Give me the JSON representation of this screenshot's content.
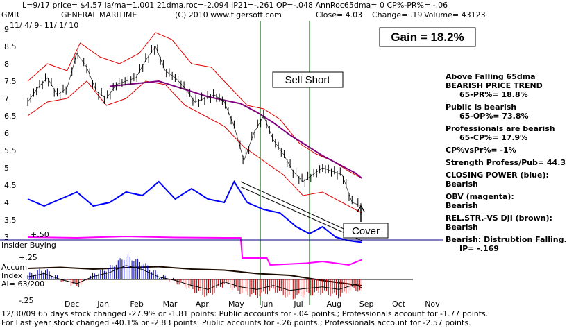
{
  "header": {
    "line1": "L=9/17  price= $4.57  la/ma=1.001 21dma.roc=-2.094 IP21=-.261 OP=-.048 AnnRoc65dma= 0 CP%-PR%= -.06",
    "ticker": "GMR",
    "company": "GENERAL MARITIME",
    "copyright": "(C) 2010  www.tigersoft.com",
    "close": "Close=   4.03",
    "change": "Change= .19",
    "volume": "Volume= 43123",
    "date_range": "11/ 4/ 9- 11/ 1/ 10"
  },
  "gain_label": "Gain = 18.2%",
  "annotations": {
    "sell_short": "Sell Short",
    "cover": "Cover",
    "insider": "Insider Buying",
    "accum_title": "Accum",
    "accum_index": "Index",
    "accum_ai": "AI= 63/200",
    "plus50": "+.50",
    "plus25": "+.25",
    "minus25": "-.25"
  },
  "sidebar": [
    {
      "text": "Above Falling 65dma",
      "gap": 0
    },
    {
      "text": "BEARISH PRICE TREND",
      "gap": 0
    },
    {
      "text": "65-PR%= 18.8%",
      "gap": 0,
      "indent": true
    },
    {
      "text": "Public is bearish",
      "gap": 1
    },
    {
      "text": "65-OP%= 73.8%",
      "gap": 0,
      "indent": true
    },
    {
      "text": "Professionals are bearish",
      "gap": 1
    },
    {
      "text": "65-CP%= 17.9%",
      "gap": 0,
      "indent": true
    },
    {
      "text": "CP%vsPr%= -1%",
      "gap": 1
    },
    {
      "text": "Strength Profess/Pub= 44.3",
      "gap": 1
    },
    {
      "text": "CLOSING POWER (blue):",
      "gap": 1
    },
    {
      "text": "Bearish",
      "gap": 0
    },
    {
      "text": "OBV (magenta):",
      "gap": 1
    },
    {
      "text": "Bearish",
      "gap": 0
    },
    {
      "text": "REL.STR.-VS DJI (brown):",
      "gap": 1
    },
    {
      "text": "Bearish",
      "gap": 0
    },
    {
      "text": "Bearish:  Distrubtion Falling.",
      "gap": 1
    },
    {
      "text": "IP= -.169",
      "gap": 0,
      "indent": true
    }
  ],
  "footer": {
    "line1": "12/30/09  65 days stock changed -27.9% or -1.81 points:  Public accounts for -.04 points.;  Professionals account for -1.77 points.",
    "line2": "For Last year stock changed -40.1% or -2.83 points:  Public accounts for -.26 points.;  Professionals account for -2.57 points."
  },
  "chart_data": {
    "type": "line",
    "title": "GENERAL MARITIME",
    "ylim": [
      3,
      9
    ],
    "y_ticks": [
      3,
      3.5,
      4,
      4.5,
      5,
      5.5,
      6,
      6.5,
      7,
      7.5,
      8,
      8.5,
      9
    ],
    "y_tick_labels": [
      "3",
      "3.5",
      "4",
      "4.5",
      "5",
      "5.5",
      "6",
      "6.5",
      "7",
      "7.5",
      "8",
      "8.5",
      "9"
    ],
    "months": [
      "Dec",
      "Jan",
      "Feb",
      "Mar",
      "Apr",
      "May",
      "Jun",
      "Jul",
      "Aug",
      "Sep",
      "Oct",
      "Nov"
    ],
    "signals": [
      {
        "label": "Sell Short",
        "month_pos": 7.1,
        "price": 6.7
      },
      {
        "label": "Cover",
        "month_pos": 8.6,
        "price": 3.9
      }
    ],
    "price": [
      [
        0.0,
        6.9
      ],
      [
        0.3,
        7.3
      ],
      [
        0.6,
        7.6
      ],
      [
        0.9,
        7.1
      ],
      [
        1.2,
        7.3
      ],
      [
        1.5,
        8.3
      ],
      [
        1.8,
        7.9
      ],
      [
        2.1,
        7.2
      ],
      [
        2.4,
        7.0
      ],
      [
        2.7,
        7.4
      ],
      [
        3.0,
        7.5
      ],
      [
        3.3,
        7.6
      ],
      [
        3.6,
        8.1
      ],
      [
        3.9,
        8.5
      ],
      [
        4.2,
        7.8
      ],
      [
        4.5,
        7.6
      ],
      [
        4.8,
        7.3
      ],
      [
        5.1,
        6.9
      ],
      [
        5.4,
        7.0
      ],
      [
        5.7,
        7.1
      ],
      [
        6.0,
        6.9
      ],
      [
        6.3,
        6.2
      ],
      [
        6.6,
        5.2
      ],
      [
        6.9,
        6.0
      ],
      [
        7.2,
        6.5
      ],
      [
        7.5,
        5.8
      ],
      [
        7.8,
        5.4
      ],
      [
        8.1,
        4.9
      ],
      [
        8.4,
        4.6
      ],
      [
        8.7,
        4.8
      ],
      [
        9.0,
        5.0
      ],
      [
        9.3,
        4.9
      ],
      [
        9.6,
        4.8
      ],
      [
        9.9,
        4.0
      ],
      [
        10.2,
        3.9
      ]
    ],
    "ma65": [
      [
        2.5,
        7.35
      ],
      [
        3.0,
        7.4
      ],
      [
        3.5,
        7.45
      ],
      [
        4.0,
        7.5
      ],
      [
        4.5,
        7.35
      ],
      [
        5.0,
        7.2
      ],
      [
        5.5,
        7.05
      ],
      [
        6.0,
        6.95
      ],
      [
        6.5,
        6.85
      ],
      [
        7.0,
        6.6
      ],
      [
        7.5,
        6.3
      ],
      [
        8.0,
        5.95
      ],
      [
        8.5,
        5.65
      ],
      [
        9.0,
        5.35
      ],
      [
        9.5,
        5.1
      ],
      [
        10.0,
        4.85
      ],
      [
        10.2,
        4.7
      ]
    ],
    "upper_band": [
      [
        0.0,
        7.5
      ],
      [
        0.6,
        8.0
      ],
      [
        1.2,
        7.8
      ],
      [
        1.6,
        8.6
      ],
      [
        2.2,
        8.2
      ],
      [
        2.8,
        8.0
      ],
      [
        3.4,
        8.3
      ],
      [
        3.9,
        8.9
      ],
      [
        4.4,
        8.7
      ],
      [
        5.0,
        8.0
      ],
      [
        5.6,
        7.9
      ],
      [
        6.2,
        7.3
      ],
      [
        6.7,
        6.8
      ],
      [
        7.2,
        6.7
      ],
      [
        7.7,
        6.4
      ],
      [
        8.3,
        5.7
      ],
      [
        8.8,
        5.4
      ],
      [
        9.3,
        5.2
      ],
      [
        9.8,
        4.9
      ],
      [
        10.2,
        4.7
      ]
    ],
    "lower_band": [
      [
        0.0,
        6.5
      ],
      [
        0.6,
        6.9
      ],
      [
        1.2,
        7.0
      ],
      [
        1.8,
        7.5
      ],
      [
        2.4,
        6.8
      ],
      [
        3.0,
        7.0
      ],
      [
        3.6,
        7.5
      ],
      [
        4.2,
        7.4
      ],
      [
        4.8,
        6.8
      ],
      [
        5.4,
        6.5
      ],
      [
        6.0,
        6.2
      ],
      [
        6.6,
        5.6
      ],
      [
        7.2,
        5.2
      ],
      [
        7.8,
        4.8
      ],
      [
        8.4,
        4.2
      ],
      [
        9.0,
        4.3
      ],
      [
        9.6,
        4.0
      ],
      [
        10.2,
        3.7
      ]
    ],
    "closing_power": [
      [
        0.0,
        4.1
      ],
      [
        0.5,
        3.9
      ],
      [
        1.0,
        4.1
      ],
      [
        1.5,
        4.3
      ],
      [
        2.0,
        3.9
      ],
      [
        2.5,
        4.0
      ],
      [
        3.0,
        4.3
      ],
      [
        3.5,
        4.2
      ],
      [
        4.0,
        4.6
      ],
      [
        4.5,
        4.1
      ],
      [
        5.0,
        4.4
      ],
      [
        5.5,
        4.1
      ],
      [
        6.0,
        4.0
      ],
      [
        6.3,
        4.6
      ],
      [
        6.7,
        4.0
      ],
      [
        7.2,
        3.8
      ],
      [
        7.7,
        3.7
      ],
      [
        8.2,
        3.3
      ],
      [
        8.6,
        3.1
      ],
      [
        9.0,
        3.3
      ],
      [
        9.4,
        3.0
      ],
      [
        9.8,
        2.9
      ],
      [
        10.2,
        2.85
      ]
    ],
    "obv": [
      [
        0.0,
        3.0
      ],
      [
        1.5,
        2.98
      ],
      [
        3.0,
        3.02
      ],
      [
        4.5,
        2.99
      ],
      [
        6.0,
        2.98
      ],
      [
        6.5,
        2.98
      ],
      [
        6.55,
        2.4
      ],
      [
        7.3,
        2.4
      ],
      [
        7.4,
        2.2
      ],
      [
        8.5,
        2.25
      ],
      [
        9.0,
        2.3
      ],
      [
        9.8,
        2.2
      ],
      [
        10.2,
        2.35
      ]
    ],
    "rel_strength": [
      [
        0.0,
        2.1
      ],
      [
        1.0,
        2.13
      ],
      [
        2.0,
        2.08
      ],
      [
        3.0,
        2.12
      ],
      [
        4.0,
        2.15
      ],
      [
        5.0,
        2.08
      ],
      [
        6.0,
        2.05
      ],
      [
        7.0,
        1.95
      ],
      [
        8.0,
        1.9
      ],
      [
        9.0,
        1.75
      ],
      [
        10.2,
        1.6
      ]
    ],
    "accum_index": [
      [
        0.0,
        0.05
      ],
      [
        0.5,
        0.12
      ],
      [
        1.0,
        0.0
      ],
      [
        1.5,
        -0.08
      ],
      [
        2.0,
        0.06
      ],
      [
        2.5,
        0.14
      ],
      [
        3.0,
        0.28
      ],
      [
        3.5,
        0.2
      ],
      [
        4.0,
        0.05
      ],
      [
        4.5,
        -0.02
      ],
      [
        5.0,
        -0.12
      ],
      [
        5.5,
        -0.2
      ],
      [
        6.0,
        -0.05
      ],
      [
        6.5,
        -0.15
      ],
      [
        7.0,
        -0.2
      ],
      [
        7.5,
        -0.12
      ],
      [
        8.0,
        -0.22
      ],
      [
        8.5,
        -0.18
      ],
      [
        9.0,
        -0.15
      ],
      [
        9.5,
        -0.2
      ],
      [
        10.0,
        -0.1
      ],
      [
        10.2,
        -0.17
      ]
    ]
  }
}
